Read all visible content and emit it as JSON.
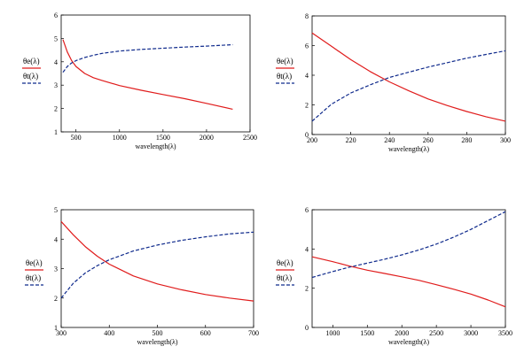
{
  "colors": {
    "red_curve": "#e01c1c",
    "blue_curve": "#0f2a8c",
    "frame": "#000000"
  },
  "chart_data": [
    {
      "type": "line",
      "xlabel": "wavelength(λ)",
      "xlim": [
        330,
        2500
      ],
      "ylim": [
        1,
        6
      ],
      "xticks": [
        500,
        1000,
        1500,
        2000,
        2500
      ],
      "yticks": [
        1,
        2,
        3,
        4,
        5,
        6
      ],
      "legend_position": "left",
      "series": [
        {
          "name": "θe(λ)",
          "color": "#e01c1c",
          "style": "solid",
          "x": [
            350,
            400,
            450,
            500,
            600,
            700,
            800,
            1000,
            1250,
            1500,
            1750,
            2000,
            2300
          ],
          "y": [
            4.95,
            4.42,
            4.05,
            3.8,
            3.5,
            3.32,
            3.2,
            2.98,
            2.78,
            2.6,
            2.42,
            2.22,
            1.97
          ]
        },
        {
          "name": "θt(λ)",
          "color": "#0f2a8c",
          "style": "dashed",
          "x": [
            350,
            400,
            450,
            500,
            600,
            700,
            800,
            1000,
            1250,
            1500,
            1750,
            2000,
            2300
          ],
          "y": [
            3.55,
            3.8,
            3.95,
            4.05,
            4.18,
            4.28,
            4.36,
            4.46,
            4.53,
            4.58,
            4.63,
            4.67,
            4.73
          ]
        }
      ]
    },
    {
      "type": "line",
      "xlabel": "wavelength(λ)",
      "xlim": [
        200,
        300
      ],
      "ylim": [
        0,
        8
      ],
      "xticks": [
        200,
        220,
        240,
        260,
        280,
        300
      ],
      "yticks": [
        0,
        2,
        4,
        6,
        8
      ],
      "legend_position": "left",
      "series": [
        {
          "name": "θe(λ)",
          "color": "#e01c1c",
          "style": "solid",
          "x": [
            200,
            210,
            220,
            230,
            240,
            250,
            260,
            270,
            280,
            290,
            300
          ],
          "y": [
            6.85,
            5.95,
            5.05,
            4.25,
            3.55,
            2.95,
            2.4,
            1.95,
            1.55,
            1.2,
            0.9
          ]
        },
        {
          "name": "θt(λ)",
          "color": "#0f2a8c",
          "style": "dashed",
          "x": [
            200,
            210,
            220,
            230,
            240,
            250,
            260,
            270,
            280,
            290,
            300
          ],
          "y": [
            0.9,
            2.05,
            2.8,
            3.35,
            3.85,
            4.2,
            4.55,
            4.85,
            5.15,
            5.4,
            5.65
          ]
        }
      ]
    },
    {
      "type": "line",
      "xlabel": "wavelength(λ)",
      "xlim": [
        300,
        700
      ],
      "ylim": [
        1,
        5
      ],
      "xticks": [
        300,
        400,
        500,
        600,
        700
      ],
      "yticks": [
        1,
        2,
        3,
        4,
        5
      ],
      "legend_position": "left",
      "series": [
        {
          "name": "θe(λ)",
          "color": "#e01c1c",
          "style": "solid",
          "x": [
            300,
            325,
            350,
            375,
            400,
            450,
            500,
            550,
            600,
            650,
            700
          ],
          "y": [
            4.6,
            4.15,
            3.75,
            3.42,
            3.15,
            2.75,
            2.48,
            2.28,
            2.12,
            2.0,
            1.9
          ]
        },
        {
          "name": "θt(λ)",
          "color": "#0f2a8c",
          "style": "dashed",
          "x": [
            300,
            325,
            350,
            375,
            400,
            450,
            500,
            550,
            600,
            650,
            700
          ],
          "y": [
            2.0,
            2.5,
            2.85,
            3.1,
            3.3,
            3.6,
            3.8,
            3.96,
            4.08,
            4.18,
            4.24
          ]
        }
      ]
    },
    {
      "type": "line",
      "xlabel": "wavelength(λ)",
      "xlim": [
        700,
        3500
      ],
      "ylim": [
        0,
        6
      ],
      "xticks": [
        1000,
        1500,
        2000,
        2500,
        3000,
        3500
      ],
      "yticks": [
        0,
        2,
        4,
        6
      ],
      "legend_position": "left",
      "series": [
        {
          "name": "θe(λ)",
          "color": "#e01c1c",
          "style": "solid",
          "x": [
            700,
            1000,
            1250,
            1500,
            1750,
            2000,
            2250,
            2500,
            2750,
            3000,
            3250,
            3500
          ],
          "y": [
            3.6,
            3.35,
            3.12,
            2.92,
            2.75,
            2.58,
            2.4,
            2.18,
            1.95,
            1.7,
            1.4,
            1.05
          ]
        },
        {
          "name": "θt(λ)",
          "color": "#0f2a8c",
          "style": "dashed",
          "x": [
            700,
            1000,
            1250,
            1500,
            1750,
            2000,
            2250,
            2500,
            2750,
            3000,
            3250,
            3500
          ],
          "y": [
            2.55,
            2.85,
            3.08,
            3.28,
            3.48,
            3.7,
            3.95,
            4.25,
            4.6,
            5.0,
            5.45,
            5.9
          ]
        }
      ]
    }
  ]
}
